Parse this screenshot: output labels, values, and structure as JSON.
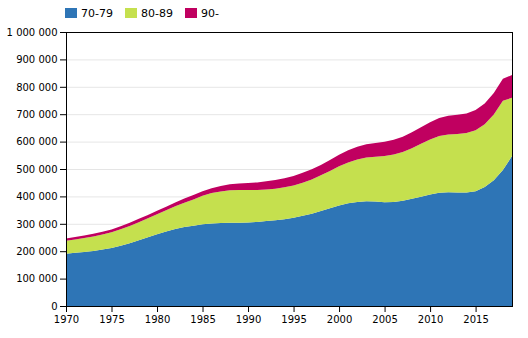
{
  "chart_data": {
    "type": "area",
    "stacked": true,
    "x": [
      1970,
      1971,
      1972,
      1973,
      1974,
      1975,
      1976,
      1977,
      1978,
      1979,
      1980,
      1981,
      1982,
      1983,
      1984,
      1985,
      1986,
      1987,
      1988,
      1989,
      1990,
      1991,
      1992,
      1993,
      1994,
      1995,
      1996,
      1997,
      1998,
      1999,
      2000,
      2001,
      2002,
      2003,
      2004,
      2005,
      2006,
      2007,
      2008,
      2009,
      2010,
      2011,
      2012,
      2013,
      2014,
      2015,
      2016,
      2017,
      2018,
      2019
    ],
    "series": [
      {
        "name": "70-79",
        "color": "#2e75b6",
        "values": [
          191000,
          194000,
          197000,
          201000,
          206000,
          212000,
          220000,
          229000,
          240000,
          251000,
          262000,
          272000,
          281000,
          288000,
          293000,
          298000,
          301000,
          303000,
          304000,
          304000,
          305000,
          307000,
          310000,
          313000,
          317000,
          322000,
          329000,
          337000,
          347000,
          357000,
          367000,
          375000,
          380000,
          382000,
          381000,
          379000,
          380000,
          384000,
          391000,
          399000,
          407000,
          413000,
          415000,
          414000,
          414000,
          419000,
          434000,
          459000,
          496000,
          547000
        ]
      },
      {
        "name": "80-89",
        "color": "#c5e04e",
        "values": [
          47000,
          49000,
          51000,
          53000,
          55000,
          57000,
          60000,
          63000,
          66000,
          69000,
          73000,
          77000,
          83000,
          89000,
          96000,
          104000,
          111000,
          115000,
          118000,
          119000,
          118000,
          116000,
          115000,
          115000,
          116000,
          118000,
          121000,
          125000,
          130000,
          136000,
          143000,
          149000,
          155000,
          160000,
          164000,
          168000,
          173000,
          178000,
          185000,
          193000,
          201000,
          207000,
          211000,
          214000,
          217000,
          222000,
          229000,
          240000,
          253000,
          213000
        ]
      },
      {
        "name": "90-",
        "color": "#c00060",
        "values": [
          8000,
          8500,
          9000,
          9500,
          10000,
          10500,
          11000,
          11500,
          12000,
          12500,
          13000,
          13500,
          14000,
          15000,
          16000,
          17000,
          18000,
          20000,
          22000,
          24000,
          26000,
          28000,
          30000,
          32000,
          33000,
          34000,
          36000,
          37000,
          38000,
          40000,
          42000,
          44000,
          46000,
          48000,
          50000,
          52000,
          54000,
          56000,
          58000,
          60000,
          63000,
          66000,
          68000,
          70000,
          72000,
          74000,
          76000,
          78000,
          80000,
          83000
        ]
      }
    ],
    "xlim": [
      1970,
      2019
    ],
    "xticks": [
      1970,
      1975,
      1980,
      1985,
      1990,
      1995,
      2000,
      2005,
      2010,
      2015
    ],
    "ylim": [
      0,
      1000000
    ],
    "yticks": [
      0,
      {
        "value": 100000,
        "label": "100 000"
      },
      {
        "value": 200000,
        "label": "200 000"
      },
      {
        "value": 300000,
        "label": "300 000"
      },
      {
        "value": 400000,
        "label": "400 000"
      },
      {
        "value": 500000,
        "label": "500 000"
      },
      {
        "value": 600000,
        "label": "600 000"
      },
      {
        "value": 700000,
        "label": "700 000"
      },
      {
        "value": 800000,
        "label": "800 000"
      },
      {
        "value": 900000,
        "label": "900 000"
      },
      {
        "value": 1000000,
        "label": "1 000 000"
      }
    ],
    "grid": true,
    "legend": "upper left"
  }
}
